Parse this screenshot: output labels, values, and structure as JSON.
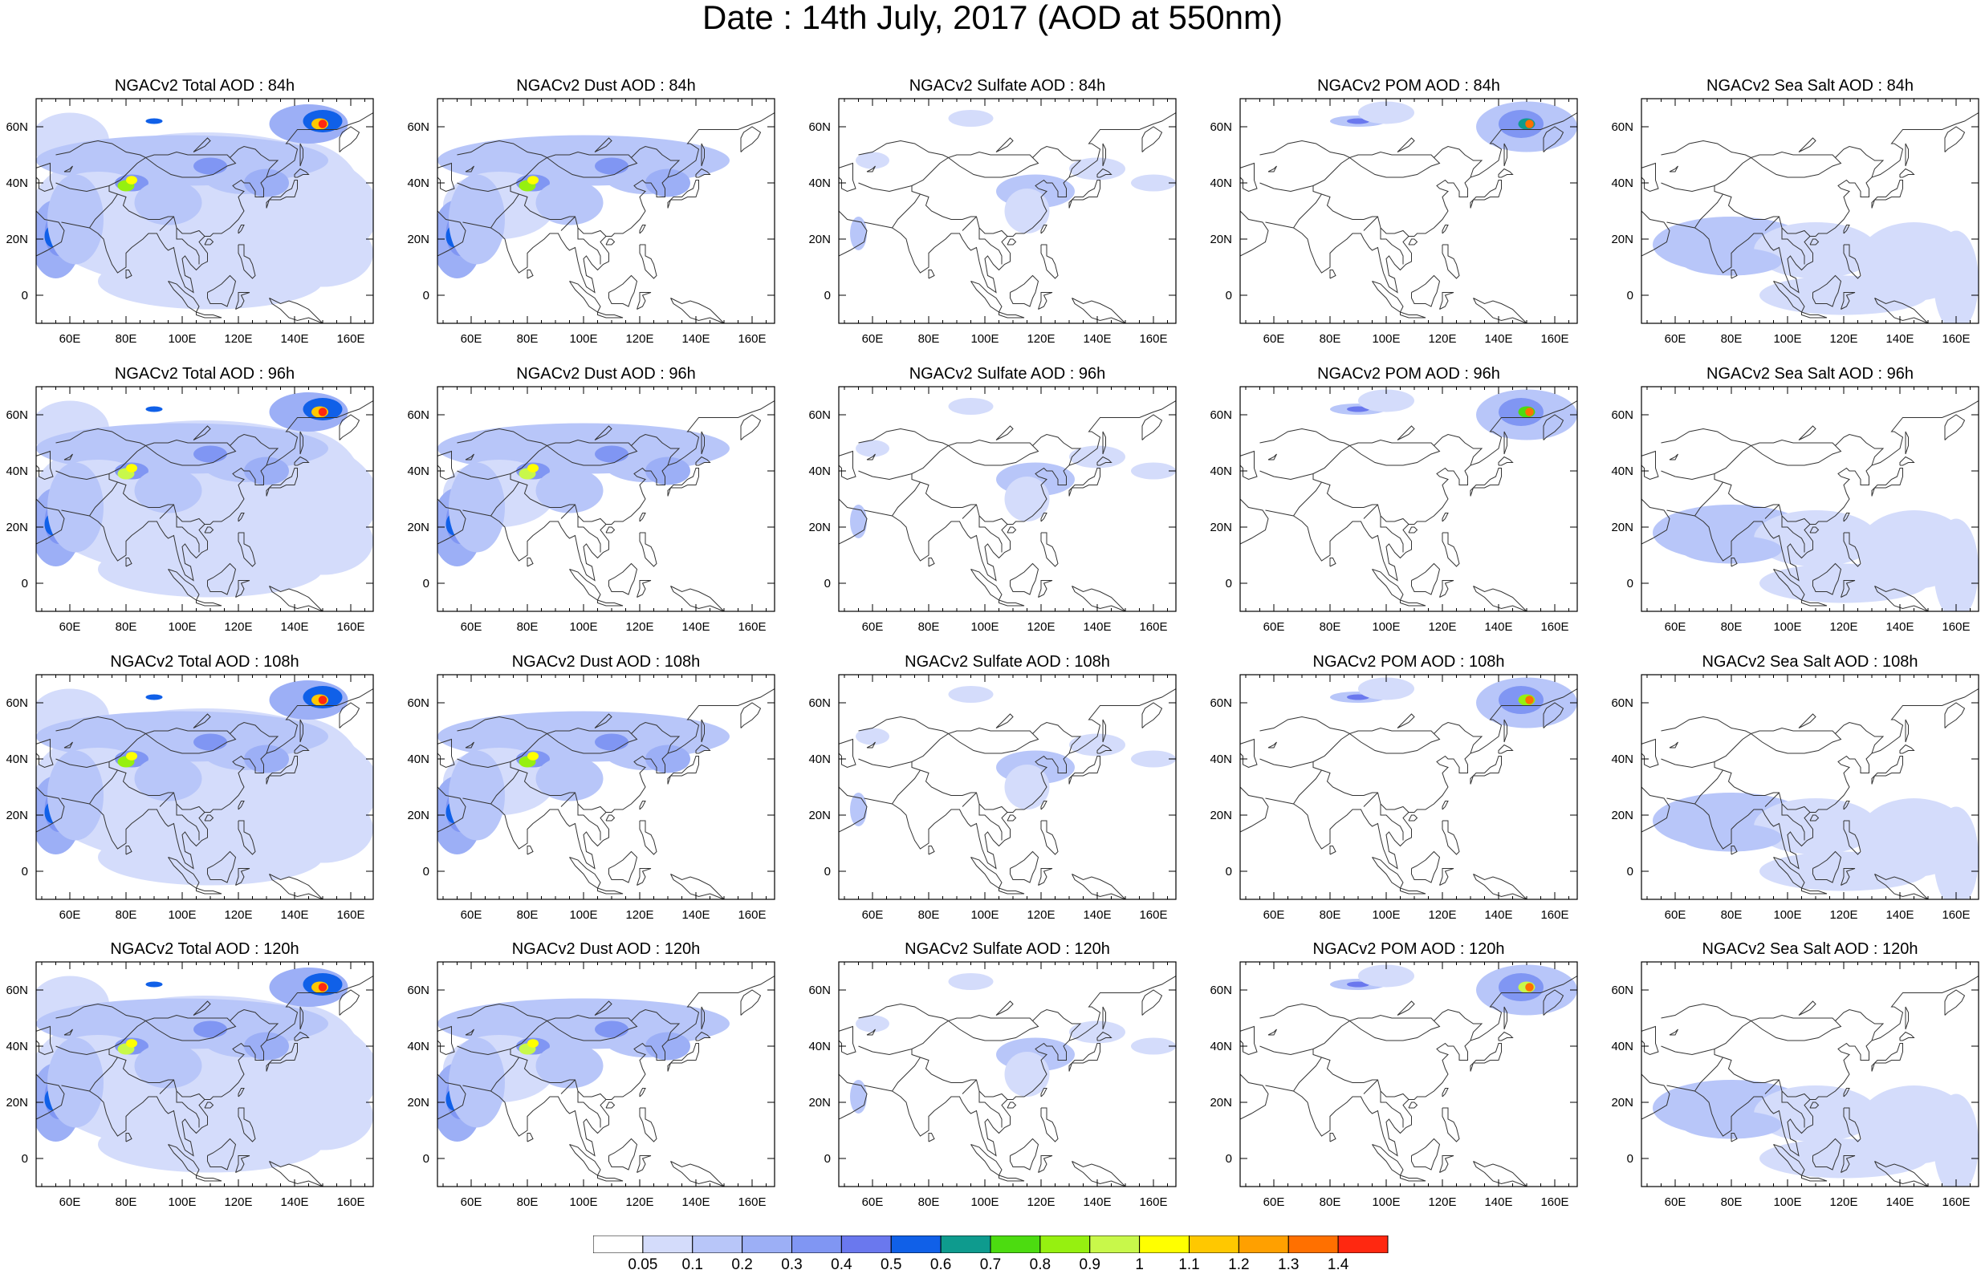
{
  "title": "Date : 14th July, 2017 (AOD at 550nm)",
  "lon_ticks": [
    "60E",
    "80E",
    "100E",
    "120E",
    "140E",
    "160E"
  ],
  "lat_ticks": [
    "60N",
    "40N",
    "20N",
    "0"
  ],
  "lon_tick_values": [
    60,
    80,
    100,
    120,
    140,
    160
  ],
  "lat_tick_values": [
    60,
    40,
    20,
    0
  ],
  "map_extent": {
    "lon": [
      48,
      168
    ],
    "lat": [
      -10,
      70
    ]
  },
  "panels": [
    {
      "title": "NGACv2 Total AOD : 84h",
      "species": "total",
      "hour": "84h"
    },
    {
      "title": "NGACv2 Dust AOD : 84h",
      "species": "dust",
      "hour": "84h"
    },
    {
      "title": "NGACv2 Sulfate AOD : 84h",
      "species": "sulfate",
      "hour": "84h"
    },
    {
      "title": "NGACv2 POM AOD : 84h",
      "species": "pom",
      "hour": "84h"
    },
    {
      "title": "NGACv2 Sea Salt AOD : 84h",
      "species": "seasalt",
      "hour": "84h"
    },
    {
      "title": "NGACv2 Total AOD : 96h",
      "species": "total",
      "hour": "96h"
    },
    {
      "title": "NGACv2 Dust AOD : 96h",
      "species": "dust",
      "hour": "96h"
    },
    {
      "title": "NGACv2 Sulfate AOD : 96h",
      "species": "sulfate",
      "hour": "96h"
    },
    {
      "title": "NGACv2 POM AOD : 96h",
      "species": "pom",
      "hour": "96h"
    },
    {
      "title": "NGACv2 Sea Salt AOD : 96h",
      "species": "seasalt",
      "hour": "96h"
    },
    {
      "title": "NGACv2 Total AOD : 108h",
      "species": "total",
      "hour": "108h"
    },
    {
      "title": "NGACv2 Dust AOD : 108h",
      "species": "dust",
      "hour": "108h"
    },
    {
      "title": "NGACv2 Sulfate AOD : 108h",
      "species": "sulfate",
      "hour": "108h"
    },
    {
      "title": "NGACv2 POM AOD : 108h",
      "species": "pom",
      "hour": "108h"
    },
    {
      "title": "NGACv2 Sea Salt AOD : 108h",
      "species": "seasalt",
      "hour": "108h"
    },
    {
      "title": "NGACv2 Total AOD : 120h",
      "species": "total",
      "hour": "120h"
    },
    {
      "title": "NGACv2 Dust AOD : 120h",
      "species": "dust",
      "hour": "120h"
    },
    {
      "title": "NGACv2 Sulfate AOD : 120h",
      "species": "sulfate",
      "hour": "120h"
    },
    {
      "title": "NGACv2 POM AOD : 120h",
      "species": "pom",
      "hour": "120h"
    },
    {
      "title": "NGACv2 Sea Salt  AOD : 120h",
      "species": "seasalt",
      "hour": "120h"
    }
  ],
  "colorbar": {
    "labels": [
      "0.05",
      "0.1",
      "0.2",
      "0.3",
      "0.4",
      "0.5",
      "0.6",
      "0.7",
      "0.8",
      "0.9",
      "1",
      "1.1",
      "1.2",
      "1.3",
      "1.4"
    ],
    "colors": [
      "#ffffff",
      "#d4dcfb",
      "#b8c6f9",
      "#9caff6",
      "#8096f3",
      "#6a78ee",
      "#1060e8",
      "#0e9b8e",
      "#4cdc10",
      "#96f010",
      "#c8f84a",
      "#ffff00",
      "#ffc800",
      "#ffa000",
      "#ff7000",
      "#ff2810"
    ]
  }
}
